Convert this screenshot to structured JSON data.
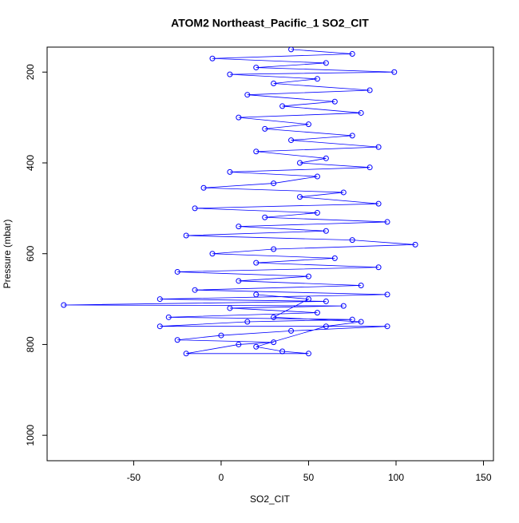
{
  "chart_data": {
    "type": "line",
    "title": "ATOM2 Northeast_Pacific_1 SO2_CIT",
    "xlabel": "SO2_CIT",
    "ylabel": "Pressure (mbar)",
    "xlim": [
      -99.5,
      155.7
    ],
    "xticks": [
      -50,
      0,
      50,
      100,
      150
    ],
    "ylim": [
      1056,
      145
    ],
    "yticks": [
      200,
      400,
      600,
      800,
      1000
    ],
    "markers": "open-circle",
    "series": [
      {
        "color": "#0000ff",
        "x": [
          40,
          75,
          -5,
          60,
          20,
          99,
          5,
          55,
          30,
          85,
          15,
          65,
          35,
          80,
          10,
          50,
          25,
          75,
          40,
          90,
          20,
          60,
          45,
          85,
          5,
          55,
          30,
          -10,
          70,
          45,
          90,
          -15,
          55,
          25,
          95,
          10,
          60,
          -20,
          75,
          111,
          30,
          -5,
          65,
          20,
          90,
          -25,
          50,
          10,
          80,
          -15,
          95,
          -35,
          60,
          -90,
          70,
          5,
          55,
          -30,
          75,
          15,
          -35,
          95,
          40,
          0,
          -25,
          30,
          10,
          -20,
          50,
          35,
          20,
          60,
          80,
          30,
          50,
          20
        ],
        "values": [
          150,
          160,
          170,
          180,
          190,
          200,
          205,
          215,
          225,
          240,
          250,
          265,
          275,
          290,
          300,
          315,
          325,
          340,
          350,
          365,
          375,
          390,
          400,
          410,
          420,
          430,
          445,
          455,
          465,
          475,
          490,
          500,
          510,
          520,
          530,
          540,
          550,
          560,
          570,
          580,
          590,
          600,
          610,
          620,
          630,
          640,
          650,
          660,
          670,
          680,
          690,
          700,
          705,
          713,
          715,
          720,
          730,
          740,
          745,
          750,
          760,
          760,
          770,
          780,
          790,
          795,
          800,
          820,
          820,
          815,
          805,
          760,
          750,
          740,
          700,
          690
        ]
      }
    ]
  }
}
